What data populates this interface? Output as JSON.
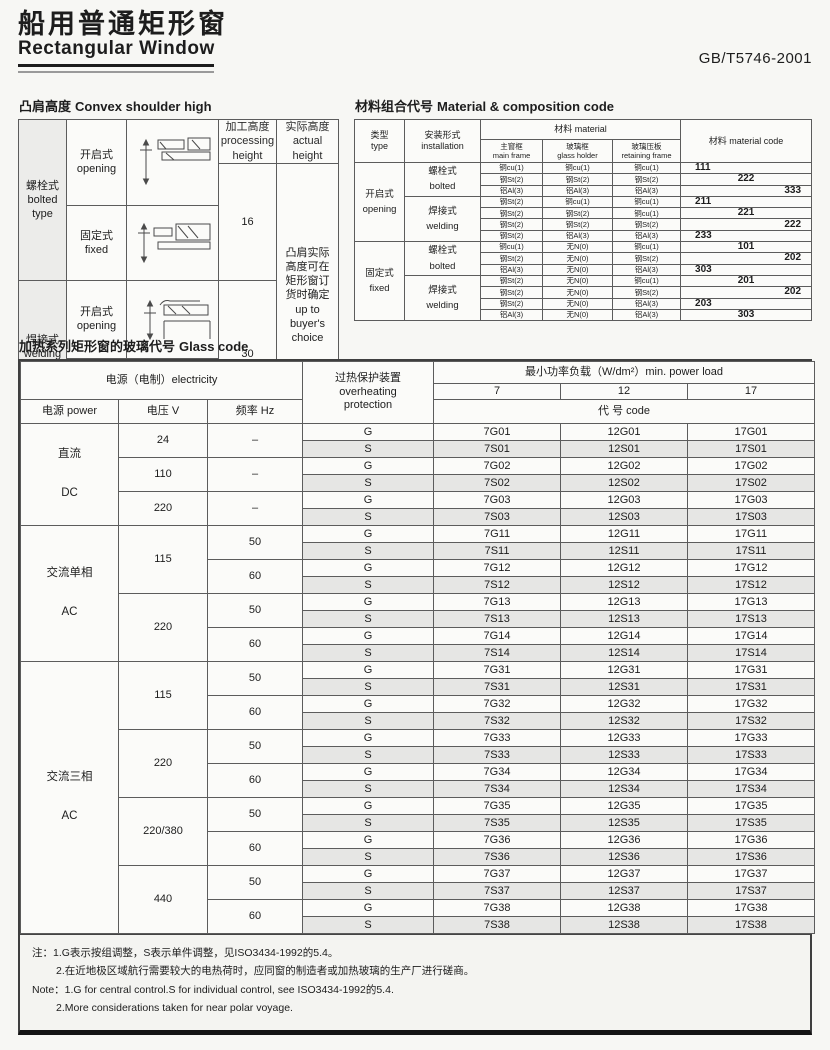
{
  "page": {
    "title_cn": "船用普通矩形窗",
    "title_en": "Rectangular Window",
    "standard_code": "GB/T5746-2001"
  },
  "shoulder": {
    "title_cn": "凸肩高度",
    "title_en": "Convex shoulder high",
    "hdr_processing": "加工高度\nprocessing height",
    "hdr_actual": "实际高度\nactual height",
    "type_bolted": "螺栓式\nbolted\ntype",
    "type_welding": "焊接式\nwelding\ntype",
    "mode_opening": "开启式\nopening",
    "mode_fixed": "固定式\nfixed",
    "height_bolted": "16",
    "height_welding": "30",
    "actual_note": "凸肩实际\n高度可在\n矩形窗订\n货时确定\nup to\nbuyer's\nchoice",
    "drawing_names": [
      "bolted-opening-section-sketch",
      "bolted-fixed-section-sketch",
      "welding-opening-section-sketch",
      "welding-fixed-section-sketch"
    ]
  },
  "material": {
    "title_cn": "材料组合代号",
    "title_en": "Material & composition code",
    "hdr_type": "类型\ntype",
    "hdr_install": "安装形式\ninstallation",
    "hdr_material": "材料 material",
    "hdr_main_frame": "主窗框\nmain frame",
    "hdr_glass_holder": "玻璃框\nglass holder",
    "hdr_retaining": "玻璃压板\nretaining frame",
    "hdr_code": "材料 material code",
    "groups": [
      {
        "type_cn": "开启式",
        "type_en": "opening",
        "installs": [
          {
            "inst_cn": "螺栓式",
            "inst_en": "bolted",
            "rows": [
              {
                "m": [
                  "铜cu(1)",
                  "铜cu(1)",
                  "铜cu(1)"
                ],
                "code": "111",
                "pos": "l"
              },
              {
                "m": [
                  "钢St(2)",
                  "钢St(2)",
                  "钢St(2)"
                ],
                "code": "222",
                "pos": "c"
              },
              {
                "m": [
                  "铝Al(3)",
                  "铝Al(3)",
                  "铝Al(3)"
                ],
                "code": "333",
                "pos": "r"
              }
            ]
          },
          {
            "inst_cn": "焊接式",
            "inst_en": "welding",
            "rows": [
              {
                "m": [
                  "钢St(2)",
                  "铜cu(1)",
                  "铜cu(1)"
                ],
                "code": "211",
                "pos": "l"
              },
              {
                "m": [
                  "钢St(2)",
                  "钢St(2)",
                  "铜cu(1)"
                ],
                "code": "221",
                "pos": "c"
              },
              {
                "m": [
                  "钢St(2)",
                  "钢St(2)",
                  "钢St(2)"
                ],
                "code": "222",
                "pos": "r"
              },
              {
                "m": [
                  "钢St(2)",
                  "铝Al(3)",
                  "铝Al(3)"
                ],
                "code": "233",
                "pos": "l"
              }
            ]
          }
        ]
      },
      {
        "type_cn": "固定式",
        "type_en": "fixed",
        "installs": [
          {
            "inst_cn": "螺栓式",
            "inst_en": "bolted",
            "rows": [
              {
                "m": [
                  "铜cu(1)",
                  "无N(0)",
                  "铜cu(1)"
                ],
                "code": "101",
                "pos": "c"
              },
              {
                "m": [
                  "钢St(2)",
                  "无N(0)",
                  "钢St(2)"
                ],
                "code": "202",
                "pos": "r"
              },
              {
                "m": [
                  "铝Al(3)",
                  "无N(0)",
                  "铝Al(3)"
                ],
                "code": "303",
                "pos": "l"
              }
            ]
          },
          {
            "inst_cn": "焊接式",
            "inst_en": "welding",
            "rows": [
              {
                "m": [
                  "钢St(2)",
                  "无N(0)",
                  "铜cu(1)"
                ],
                "code": "201",
                "pos": "c"
              },
              {
                "m": [
                  "钢St(2)",
                  "无N(0)",
                  "钢St(2)"
                ],
                "code": "202",
                "pos": "r"
              },
              {
                "m": [
                  "钢St(2)",
                  "无N(0)",
                  "铝Al(3)"
                ],
                "code": "203",
                "pos": "l"
              },
              {
                "m": [
                  "铝Al(3)",
                  "无N(0)",
                  "铝Al(3)"
                ],
                "code": "303",
                "pos": "c"
              }
            ]
          }
        ]
      }
    ]
  },
  "glass": {
    "title_cn": "加热系列矩形窗的玻璃代号",
    "title_en": "Glass code",
    "hdr": {
      "electricity": "电源（电制）electricity",
      "protection": "过热保护装置\noverheating\nprotection",
      "minload": "最小功率负载（W/dm²）min. power load",
      "loads": [
        "7",
        "12",
        "17"
      ],
      "code_label": "代 号 code",
      "power": "电源 power",
      "voltage": "电压 V",
      "freq": "频率 Hz"
    },
    "groups": [
      {
        "power_cn": "直流",
        "power_en": "DC",
        "voltages": [
          {
            "v": "24",
            "freqs": [
              {
                "f": "–",
                "G": [
                  "7G01",
                  "12G01",
                  "17G01"
                ],
                "S": [
                  "7S01",
                  "12S01",
                  "17S01"
                ]
              }
            ]
          },
          {
            "v": "110",
            "freqs": [
              {
                "f": "–",
                "G": [
                  "7G02",
                  "12G02",
                  "17G02"
                ],
                "S": [
                  "7S02",
                  "12S02",
                  "17S02"
                ]
              }
            ]
          },
          {
            "v": "220",
            "freqs": [
              {
                "f": "–",
                "G": [
                  "7G03",
                  "12G03",
                  "17G03"
                ],
                "S": [
                  "7S03",
                  "12S03",
                  "17S03"
                ]
              }
            ]
          }
        ]
      },
      {
        "power_cn": "交流单相",
        "power_en": "AC",
        "voltages": [
          {
            "v": "115",
            "freqs": [
              {
                "f": "50",
                "G": [
                  "7G11",
                  "12G11",
                  "17G11"
                ],
                "S": [
                  "7S11",
                  "12S11",
                  "17S11"
                ]
              },
              {
                "f": "60",
                "G": [
                  "7G12",
                  "12G12",
                  "17G12"
                ],
                "S": [
                  "7S12",
                  "12S12",
                  "17S12"
                ]
              }
            ]
          },
          {
            "v": "220",
            "freqs": [
              {
                "f": "50",
                "G": [
                  "7G13",
                  "12G13",
                  "17G13"
                ],
                "S": [
                  "7S13",
                  "12S13",
                  "17S13"
                ]
              },
              {
                "f": "60",
                "G": [
                  "7G14",
                  "12G14",
                  "17G14"
                ],
                "S": [
                  "7S14",
                  "12S14",
                  "17S14"
                ]
              }
            ]
          }
        ]
      },
      {
        "power_cn": "交流三相",
        "power_en": "AC",
        "voltages": [
          {
            "v": "115",
            "freqs": [
              {
                "f": "50",
                "G": [
                  "7G31",
                  "12G31",
                  "17G31"
                ],
                "S": [
                  "7S31",
                  "12S31",
                  "17S31"
                ]
              },
              {
                "f": "60",
                "G": [
                  "7G32",
                  "12G32",
                  "17G32"
                ],
                "S": [
                  "7S32",
                  "12S32",
                  "17S32"
                ]
              }
            ]
          },
          {
            "v": "220",
            "freqs": [
              {
                "f": "50",
                "G": [
                  "7G33",
                  "12G33",
                  "17G33"
                ],
                "S": [
                  "7S33",
                  "12S33",
                  "17S33"
                ]
              },
              {
                "f": "60",
                "G": [
                  "7G34",
                  "12G34",
                  "17G34"
                ],
                "S": [
                  "7S34",
                  "12S34",
                  "17S34"
                ]
              }
            ]
          },
          {
            "v": "220/380",
            "freqs": [
              {
                "f": "50",
                "G": [
                  "7G35",
                  "12G35",
                  "17G35"
                ],
                "S": [
                  "7S35",
                  "12S35",
                  "17S35"
                ]
              },
              {
                "f": "60",
                "G": [
                  "7G36",
                  "12G36",
                  "17G36"
                ],
                "S": [
                  "7S36",
                  "12S36",
                  "17S36"
                ]
              }
            ]
          },
          {
            "v": "440",
            "freqs": [
              {
                "f": "50",
                "G": [
                  "7G37",
                  "12G37",
                  "17G37"
                ],
                "S": [
                  "7S37",
                  "12S37",
                  "17S37"
                ]
              },
              {
                "f": "60",
                "G": [
                  "7G38",
                  "12G38",
                  "17G38"
                ],
                "S": [
                  "7S38",
                  "12S38",
                  "17S38"
                ]
              }
            ]
          }
        ]
      }
    ]
  },
  "notes": {
    "lines": [
      "注：1.G表示按组调整，S表示单件调整，见ISO3434-1992的5.4。",
      "2.在近地极区域航行需要较大的电热荷时，应同窗的制造者或加热玻璃的生产厂进行磋商。",
      "Note：1.G for central control.S for individual control, see ISO3434-1992的5.4.",
      "2.More considerations taken for near polar voyage."
    ]
  }
}
